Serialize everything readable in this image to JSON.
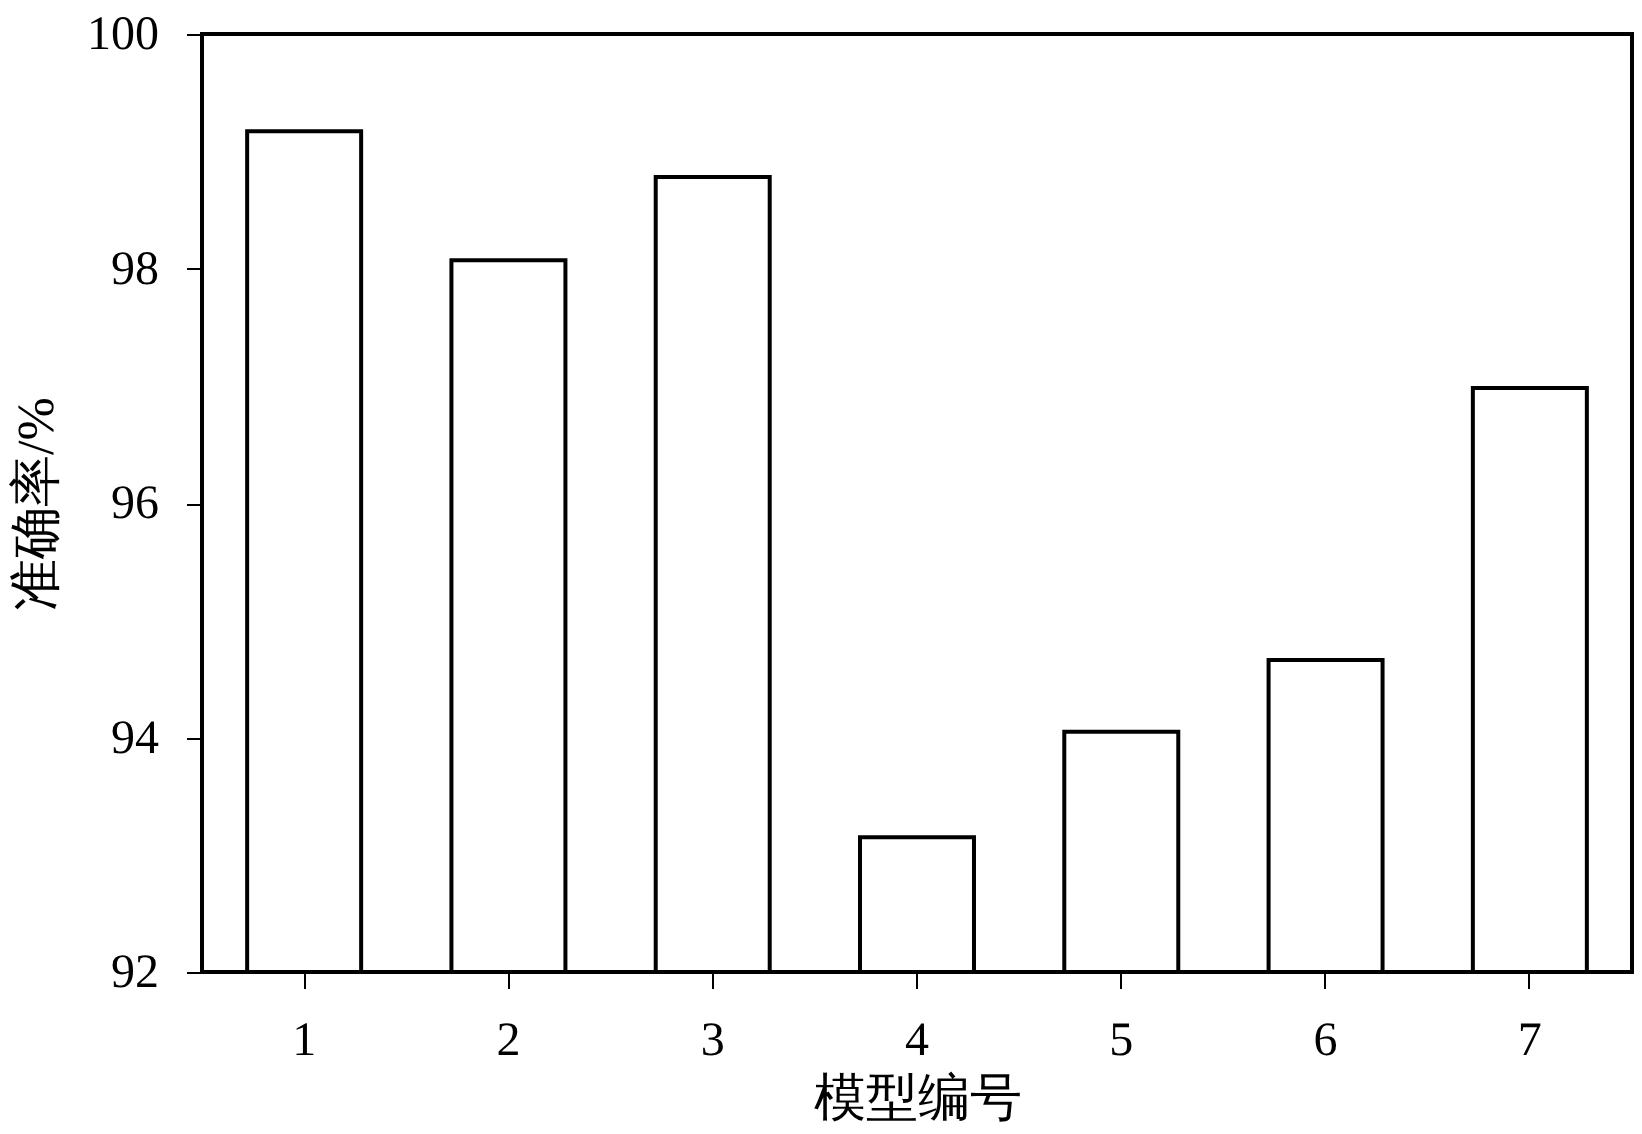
{
  "chart_data": {
    "type": "bar",
    "xlabel": "模型编号",
    "ylabel": "准确率/%",
    "categories": [
      "1",
      "2",
      "3",
      "4",
      "5",
      "6",
      "7"
    ],
    "values": [
      99.17,
      98.07,
      98.78,
      93.15,
      94.05,
      94.66,
      96.98
    ],
    "color": "#ffffff",
    "ylim": [
      92,
      100
    ],
    "yticks": [
      92,
      94,
      96,
      98,
      100
    ],
    "grid": false
  }
}
